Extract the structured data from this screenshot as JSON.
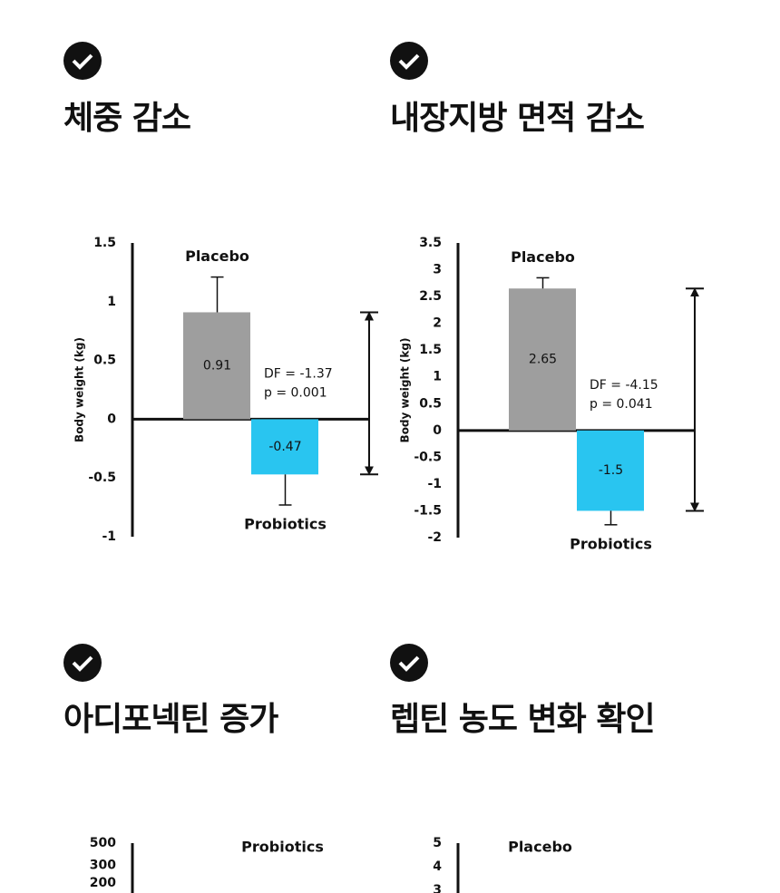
{
  "chart_data": [
    {
      "type": "bar",
      "title": "체중 감소",
      "ylabel": "Body weight (kg)",
      "categories": [
        "Placebo",
        "Probiotics"
      ],
      "values": [
        0.91,
        -0.47
      ],
      "errors": [
        0.3,
        0.26
      ],
      "colors": [
        "#9e9e9e",
        "#29c5f0"
      ],
      "annotations": [
        "DF = -1.37",
        "p = 0.001"
      ],
      "ylim": [
        -1,
        1.5
      ],
      "yticks": [
        -1,
        -0.5,
        0,
        0.5,
        1,
        1.5
      ]
    },
    {
      "type": "bar",
      "title": "내장지방 면적 감소",
      "ylabel": "Body weight (kg)",
      "categories": [
        "Placebo",
        "Probiotics"
      ],
      "values": [
        2.65,
        -1.5
      ],
      "errors": [
        0.2,
        0.26
      ],
      "colors": [
        "#9e9e9e",
        "#29c5f0"
      ],
      "annotations": [
        "DF = -4.15",
        "p = 0.041"
      ],
      "ylim": [
        -2,
        3.5
      ],
      "yticks": [
        -2,
        -1.5,
        -1,
        -0.5,
        0,
        0.5,
        1,
        1.5,
        2,
        2.5,
        3,
        3.5
      ]
    },
    {
      "type": "bar",
      "title": "아디포넥틴 증가",
      "categories": [
        null,
        "Probiotics"
      ],
      "ylim": [
        10,
        500
      ],
      "log": true,
      "yticks": [
        200,
        300,
        500
      ]
    },
    {
      "type": "bar",
      "title": "렙틴 농도 변화 확인",
      "categories": [
        "Placebo",
        null
      ],
      "ylim": [
        0,
        5
      ],
      "yticks": [
        3,
        4,
        5
      ]
    }
  ]
}
